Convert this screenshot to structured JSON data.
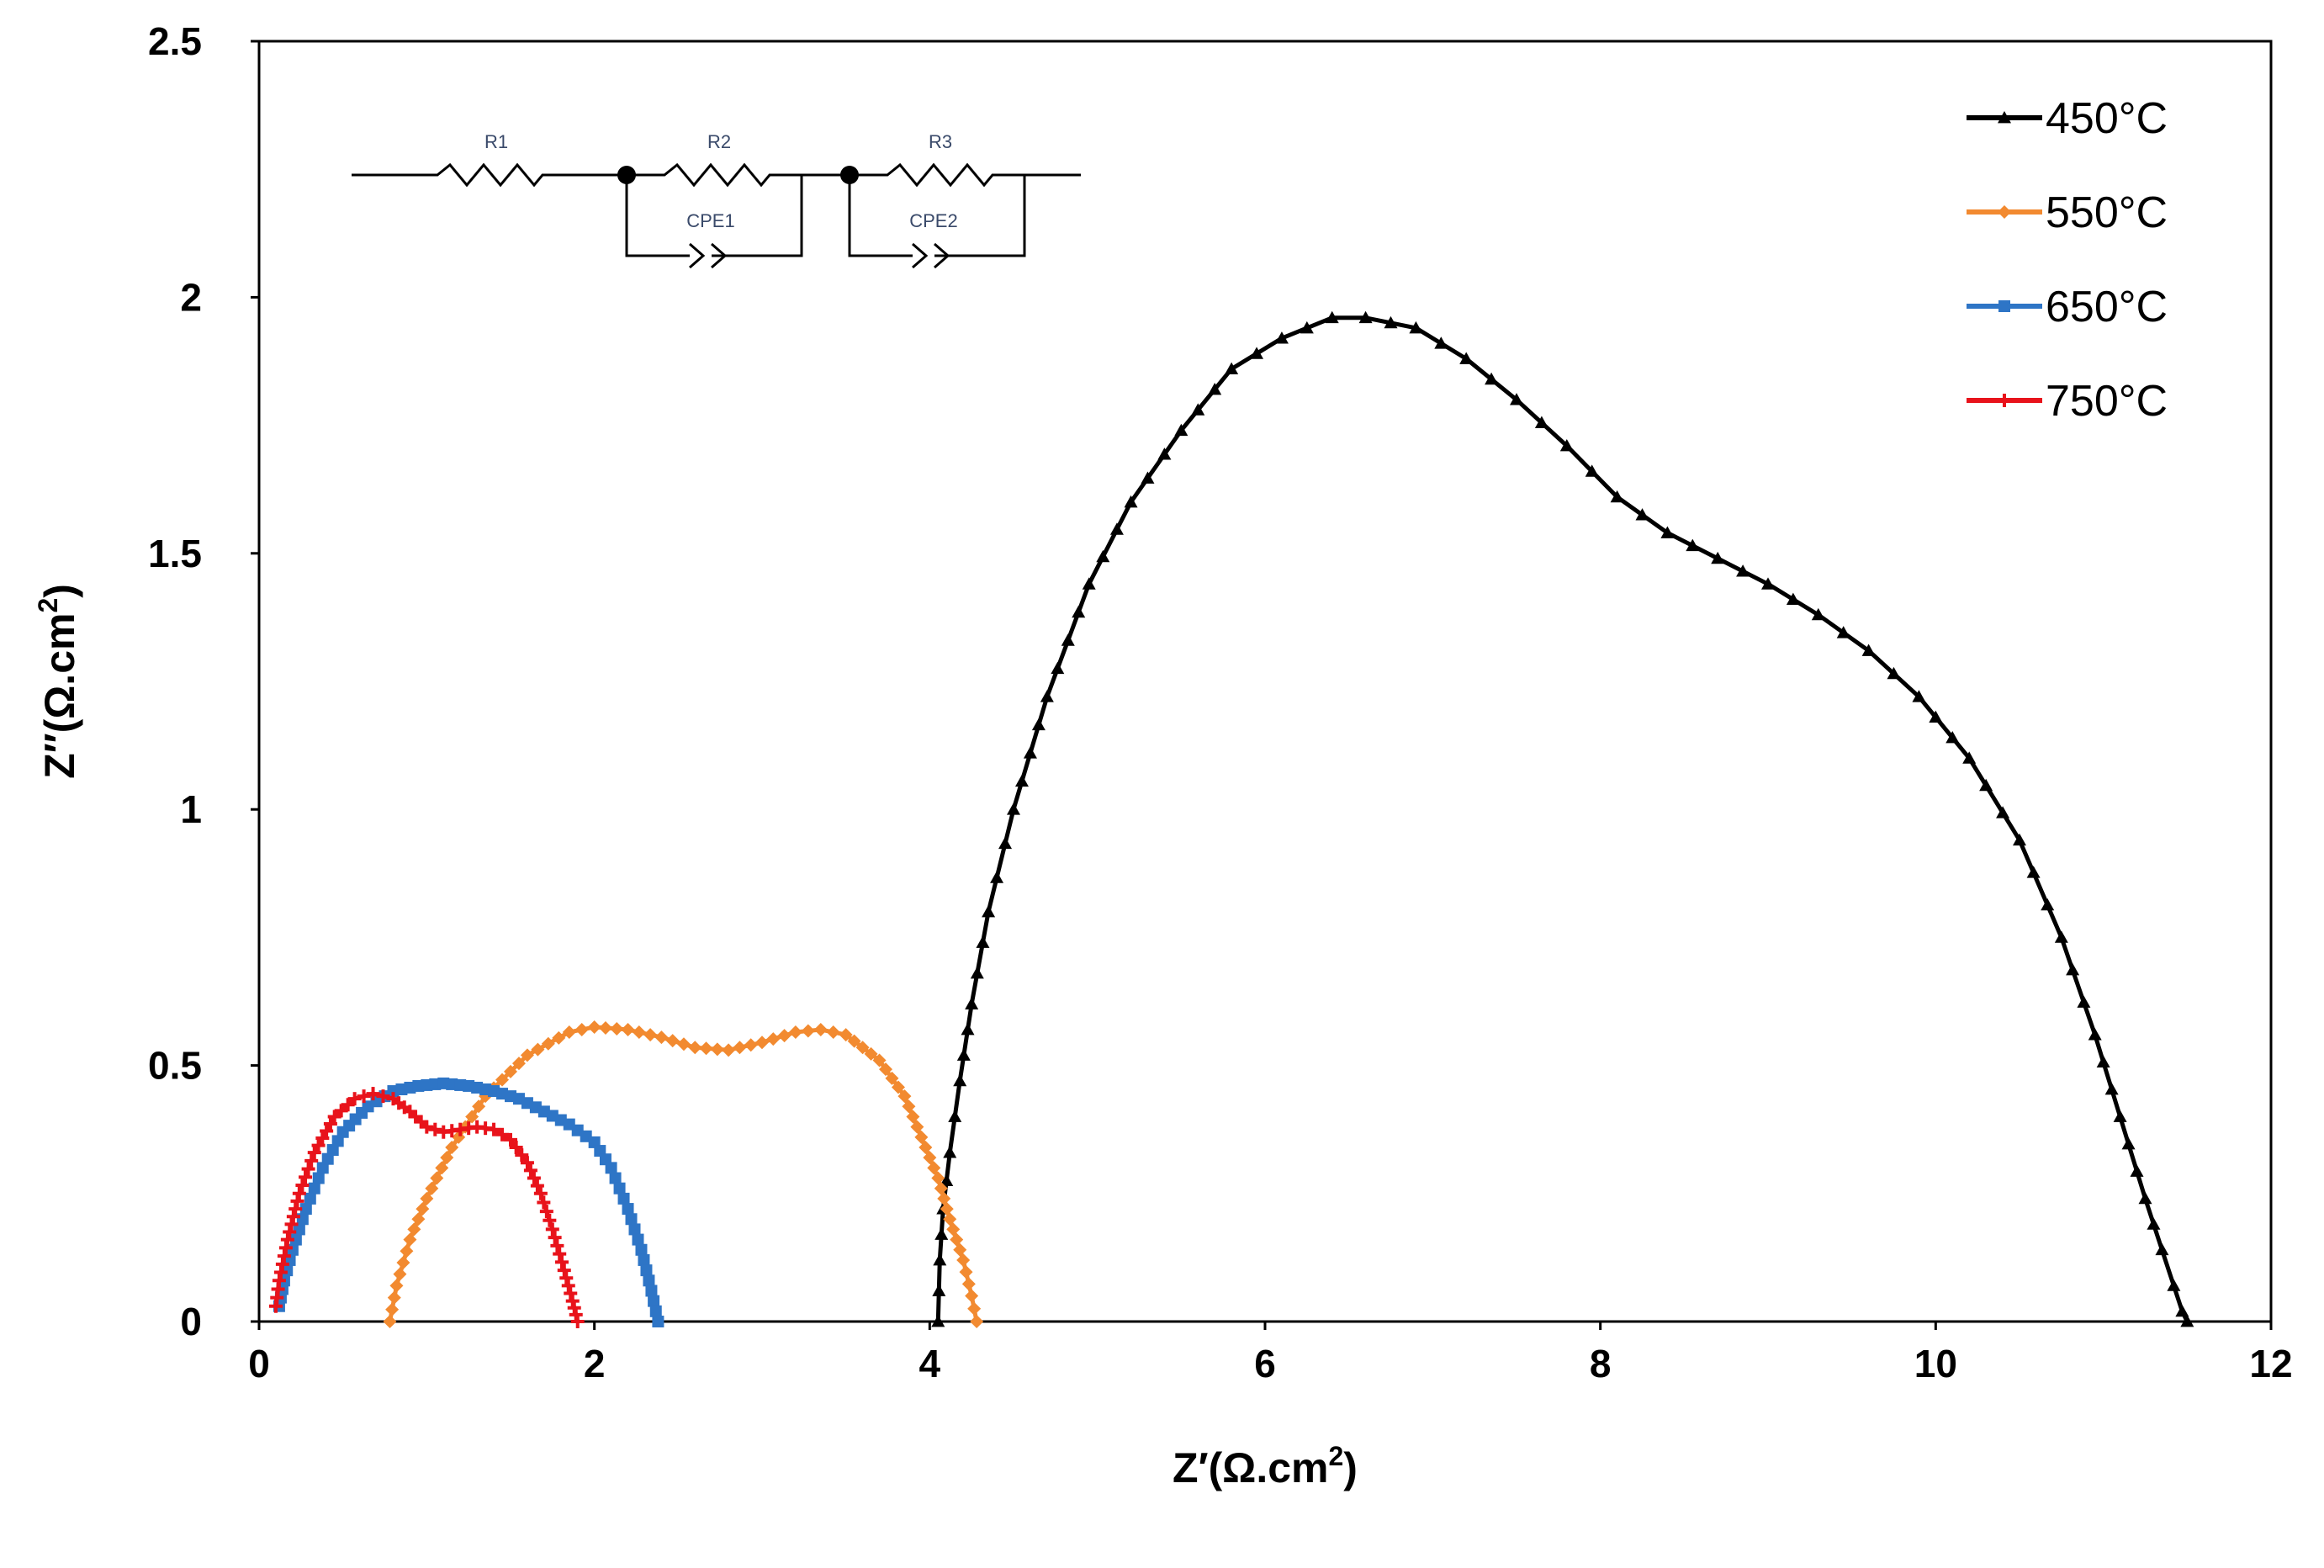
{
  "chart_data": {
    "type": "scatter",
    "title": "",
    "xlabel": "Z′(Ω.cm",
    "xlabel_sup": "2",
    "xlabel_close": ")",
    "ylabel": "Z″(Ω.cm",
    "ylabel_sup": "2",
    "ylabel_close": ")",
    "xlim": [
      0,
      12
    ],
    "ylim": [
      0,
      2.5
    ],
    "x_ticks": [
      "0",
      "2",
      "4",
      "6",
      "8",
      "10",
      "12"
    ],
    "y_ticks": [
      "0",
      "0.5",
      "1",
      "1.5",
      "2",
      "2.5"
    ],
    "grid": false,
    "legend_position": "top-right",
    "series": [
      {
        "name": "450°C",
        "color": "#000000",
        "marker": "triangle",
        "points": [
          [
            4.05,
            0.0
          ],
          [
            4.06,
            0.12
          ],
          [
            4.08,
            0.22
          ],
          [
            4.12,
            0.33
          ],
          [
            4.18,
            0.47
          ],
          [
            4.25,
            0.62
          ],
          [
            4.35,
            0.8
          ],
          [
            4.5,
            1.0
          ],
          [
            4.7,
            1.22
          ],
          [
            4.95,
            1.44
          ],
          [
            5.2,
            1.6
          ],
          [
            5.5,
            1.74
          ],
          [
            5.8,
            1.86
          ],
          [
            6.1,
            1.92
          ],
          [
            6.4,
            1.96
          ],
          [
            6.6,
            1.96
          ],
          [
            6.9,
            1.94
          ],
          [
            7.2,
            1.88
          ],
          [
            7.5,
            1.8
          ],
          [
            7.8,
            1.71
          ],
          [
            8.1,
            1.61
          ],
          [
            8.4,
            1.54
          ],
          [
            8.7,
            1.49
          ],
          [
            9.0,
            1.44
          ],
          [
            9.3,
            1.38
          ],
          [
            9.6,
            1.31
          ],
          [
            9.9,
            1.22
          ],
          [
            10.2,
            1.1
          ],
          [
            10.5,
            0.94
          ],
          [
            10.75,
            0.75
          ],
          [
            10.95,
            0.56
          ],
          [
            11.1,
            0.4
          ],
          [
            11.25,
            0.24
          ],
          [
            11.35,
            0.14
          ],
          [
            11.42,
            0.07
          ],
          [
            11.47,
            0.02
          ],
          [
            11.5,
            0.0
          ]
        ]
      },
      {
        "name": "550°C",
        "color": "#f28a30",
        "marker": "diamond",
        "points": [
          [
            0.78,
            0.0
          ],
          [
            0.82,
            0.07
          ],
          [
            0.9,
            0.16
          ],
          [
            1.0,
            0.24
          ],
          [
            1.15,
            0.34
          ],
          [
            1.35,
            0.44
          ],
          [
            1.6,
            0.52
          ],
          [
            1.85,
            0.565
          ],
          [
            2.0,
            0.575
          ],
          [
            2.2,
            0.57
          ],
          [
            2.4,
            0.555
          ],
          [
            2.6,
            0.535
          ],
          [
            2.8,
            0.53
          ],
          [
            3.0,
            0.545
          ],
          [
            3.2,
            0.565
          ],
          [
            3.35,
            0.57
          ],
          [
            3.5,
            0.56
          ],
          [
            3.7,
            0.51
          ],
          [
            3.85,
            0.44
          ],
          [
            3.95,
            0.36
          ],
          [
            4.05,
            0.28
          ],
          [
            4.12,
            0.2
          ],
          [
            4.2,
            0.12
          ],
          [
            4.25,
            0.05
          ],
          [
            4.28,
            0.0
          ]
        ]
      },
      {
        "name": "650°C",
        "color": "#2e75c6",
        "marker": "square",
        "points": [
          [
            0.12,
            0.03
          ],
          [
            0.15,
            0.08
          ],
          [
            0.2,
            0.14
          ],
          [
            0.28,
            0.22
          ],
          [
            0.38,
            0.3
          ],
          [
            0.5,
            0.37
          ],
          [
            0.65,
            0.42
          ],
          [
            0.8,
            0.45
          ],
          [
            0.95,
            0.46
          ],
          [
            1.1,
            0.465
          ],
          [
            1.25,
            0.46
          ],
          [
            1.4,
            0.45
          ],
          [
            1.55,
            0.435
          ],
          [
            1.7,
            0.41
          ],
          [
            1.85,
            0.385
          ],
          [
            2.0,
            0.35
          ],
          [
            2.1,
            0.3
          ],
          [
            2.2,
            0.22
          ],
          [
            2.28,
            0.14
          ],
          [
            2.34,
            0.06
          ],
          [
            2.38,
            0.0
          ]
        ]
      },
      {
        "name": "750°C",
        "color": "#e8131b",
        "marker": "star",
        "points": [
          [
            0.1,
            0.03
          ],
          [
            0.12,
            0.08
          ],
          [
            0.17,
            0.16
          ],
          [
            0.24,
            0.25
          ],
          [
            0.33,
            0.33
          ],
          [
            0.45,
            0.4
          ],
          [
            0.57,
            0.435
          ],
          [
            0.68,
            0.445
          ],
          [
            0.8,
            0.435
          ],
          [
            0.9,
            0.41
          ],
          [
            1.0,
            0.38
          ],
          [
            1.1,
            0.37
          ],
          [
            1.2,
            0.375
          ],
          [
            1.3,
            0.38
          ],
          [
            1.4,
            0.375
          ],
          [
            1.5,
            0.355
          ],
          [
            1.6,
            0.31
          ],
          [
            1.68,
            0.25
          ],
          [
            1.75,
            0.18
          ],
          [
            1.82,
            0.1
          ],
          [
            1.87,
            0.04
          ],
          [
            1.9,
            0.0
          ]
        ]
      }
    ],
    "inset_circuit": {
      "resistors": [
        "R1",
        "R2",
        "R3"
      ],
      "cpes": [
        "CPE1",
        "CPE2"
      ]
    }
  }
}
